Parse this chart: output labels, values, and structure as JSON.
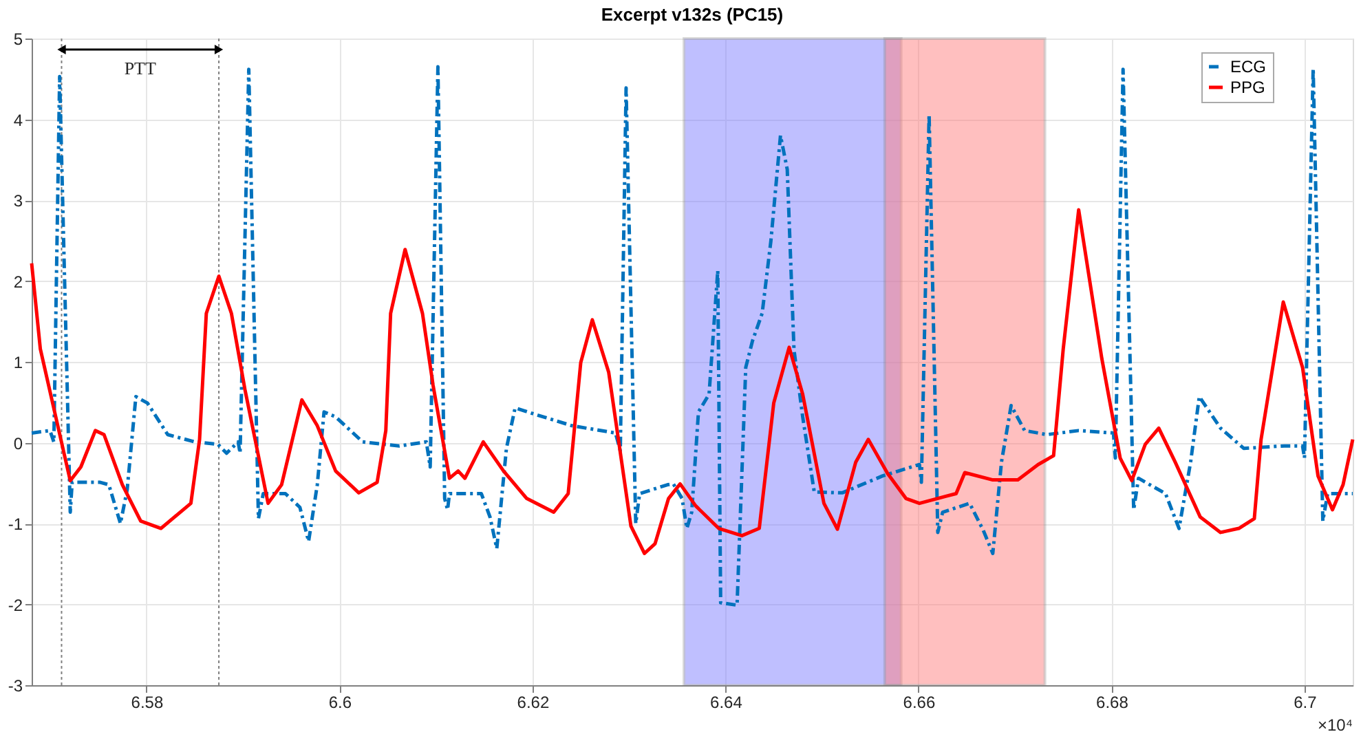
{
  "chart_data": {
    "type": "line",
    "title": "Excerpt v132s (PC15)",
    "xlim": [
      6.5681,
      6.705
    ],
    "ylim": [
      -3,
      5
    ],
    "xticks": [
      6.58,
      6.6,
      6.62,
      6.64,
      6.66,
      6.68,
      6.7
    ],
    "yticks": [
      -3,
      -2,
      -1,
      0,
      1,
      2,
      3,
      4,
      5
    ],
    "grid": true,
    "legend": "top right",
    "series": [
      {
        "name": "ECG",
        "color": "#0072bd",
        "line_style": "dashed",
        "x": [
          6.5681,
          6.57,
          6.5704,
          6.571,
          6.5721,
          6.5723,
          6.5752,
          6.5761,
          6.5773,
          6.578,
          6.5789,
          6.5801,
          6.5822,
          6.585,
          6.5874,
          6.5883,
          6.5895,
          6.5897,
          6.5906,
          6.5916,
          6.5921,
          6.5944,
          6.5959,
          6.5968,
          6.5977,
          6.5984,
          6.5996,
          6.6024,
          6.6062,
          6.609,
          6.6094,
          6.6102,
          6.6109,
          6.6112,
          6.6114,
          6.6147,
          6.6156,
          6.6163,
          6.6173,
          6.6182,
          6.6203,
          6.6241,
          6.6286,
          6.6291,
          6.6297,
          6.6307,
          6.6311,
          6.634,
          6.6346,
          6.6355,
          6.636,
          6.6365,
          6.6372,
          6.6383,
          6.6392,
          6.6395,
          6.6412,
          6.6421,
          6.6428,
          6.6438,
          6.6447,
          6.6457,
          6.6464,
          6.6471,
          6.648,
          6.6492,
          6.6521,
          6.6563,
          6.6601,
          6.6603,
          6.6611,
          6.662,
          6.6625,
          6.6653,
          6.6667,
          6.6677,
          6.6686,
          6.6696,
          6.671,
          6.6733,
          6.6766,
          6.6802,
          6.6804,
          6.6812,
          6.6823,
          6.6828,
          6.6856,
          6.687,
          6.6882,
          6.6891,
          6.6913,
          6.6937,
          6.6979,
          6.6998,
          6.7,
          6.7009,
          6.7019,
          6.7024,
          6.705
        ],
        "values": [
          0.12,
          0.15,
          0.01,
          4.53,
          -0.86,
          -0.49,
          -0.49,
          -0.52,
          -1.0,
          -0.58,
          0.57,
          0.49,
          0.1,
          0.01,
          -0.02,
          -0.13,
          0.01,
          -0.13,
          4.62,
          -0.94,
          -0.63,
          -0.63,
          -0.8,
          -1.22,
          -0.52,
          0.38,
          0.32,
          0.01,
          -0.04,
          0.01,
          -0.3,
          4.65,
          -0.69,
          -0.83,
          -0.63,
          -0.63,
          -0.92,
          -1.31,
          -0.07,
          0.43,
          0.35,
          0.21,
          0.12,
          -0.1,
          4.39,
          -1.0,
          -0.63,
          -0.52,
          -0.51,
          -0.69,
          -1.06,
          -0.86,
          0.38,
          0.6,
          2.13,
          -1.98,
          -2.01,
          0.93,
          1.26,
          1.6,
          2.49,
          3.8,
          3.38,
          1.15,
          0.32,
          -0.61,
          -0.62,
          -0.41,
          -0.27,
          -0.49,
          4.06,
          -1.11,
          -0.86,
          -0.75,
          -1.08,
          -1.37,
          -0.24,
          0.46,
          0.15,
          0.1,
          0.15,
          0.12,
          -0.19,
          4.62,
          -0.83,
          -0.44,
          -0.63,
          -1.06,
          -0.24,
          0.57,
          0.18,
          -0.07,
          -0.04,
          -0.04,
          -0.19,
          4.63,
          -0.97,
          -0.63,
          -0.63
        ]
      },
      {
        "name": "PPG",
        "color": "#ff0000",
        "line_style": "solid",
        "x": [
          6.5681,
          6.569,
          6.5721,
          6.5732,
          6.5747,
          6.5756,
          6.5775,
          6.5794,
          6.5815,
          6.5846,
          6.5855,
          6.5862,
          6.5875,
          6.5888,
          6.5902,
          6.5926,
          6.594,
          6.5961,
          6.5977,
          6.5996,
          6.602,
          6.6039,
          6.6048,
          6.6053,
          6.6068,
          6.6086,
          6.6097,
          6.6114,
          6.6123,
          6.613,
          6.6149,
          6.617,
          6.6194,
          6.6222,
          6.6237,
          6.625,
          6.6262,
          6.6279,
          6.6302,
          6.6316,
          6.6327,
          6.6341,
          6.6353,
          6.6369,
          6.6393,
          6.6417,
          6.6435,
          6.645,
          6.6466,
          6.648,
          6.6502,
          6.6516,
          6.6535,
          6.6548,
          6.6568,
          6.6587,
          6.6601,
          6.6629,
          6.6639,
          6.6648,
          6.6677,
          6.6703,
          6.6724,
          6.674,
          6.675,
          6.6766,
          6.679,
          6.6809,
          6.6821,
          6.6835,
          6.6849,
          6.6866,
          6.6892,
          6.6913,
          6.6932,
          6.6948,
          6.6955,
          6.6978,
          6.6998,
          6.7014,
          6.7029,
          6.704,
          6.705
        ],
        "values": [
          2.22,
          1.16,
          -0.47,
          -0.3,
          0.15,
          0.1,
          -0.52,
          -0.97,
          -1.06,
          -0.75,
          0.04,
          1.6,
          2.06,
          1.6,
          0.66,
          -0.75,
          -0.52,
          0.53,
          0.21,
          -0.35,
          -0.62,
          -0.49,
          0.15,
          1.6,
          2.39,
          1.6,
          0.71,
          -0.44,
          -0.35,
          -0.44,
          0.01,
          -0.35,
          -0.69,
          -0.86,
          -0.63,
          0.99,
          1.52,
          0.87,
          -1.03,
          -1.37,
          -1.25,
          -0.69,
          -0.51,
          -0.78,
          -1.06,
          -1.15,
          -1.06,
          0.49,
          1.18,
          0.6,
          -0.75,
          -1.07,
          -0.24,
          0.04,
          -0.38,
          -0.69,
          -0.75,
          -0.66,
          -0.63,
          -0.37,
          -0.46,
          -0.46,
          -0.27,
          -0.16,
          1.16,
          2.88,
          1.04,
          -0.19,
          -0.47,
          -0.02,
          0.18,
          -0.24,
          -0.92,
          -1.11,
          -1.06,
          -0.94,
          0.04,
          1.74,
          0.93,
          -0.41,
          -0.83,
          -0.52,
          0.04
        ]
      }
    ],
    "bands": [
      {
        "axis": "x",
        "from": 6.6357,
        "to": 6.6582,
        "color": "#8080ff"
      },
      {
        "axis": "x",
        "from": 6.6565,
        "to": 6.6731,
        "color": "#ff8080"
      }
    ],
    "ref_lines": [
      {
        "axis": "x",
        "value": 6.5712,
        "line_style": "dotted",
        "color": "#808080"
      },
      {
        "axis": "x",
        "value": 6.5875,
        "line_style": "dotted",
        "color": "#808080"
      }
    ],
    "annotations": [
      "PTT",
      "×10⁴"
    ]
  }
}
